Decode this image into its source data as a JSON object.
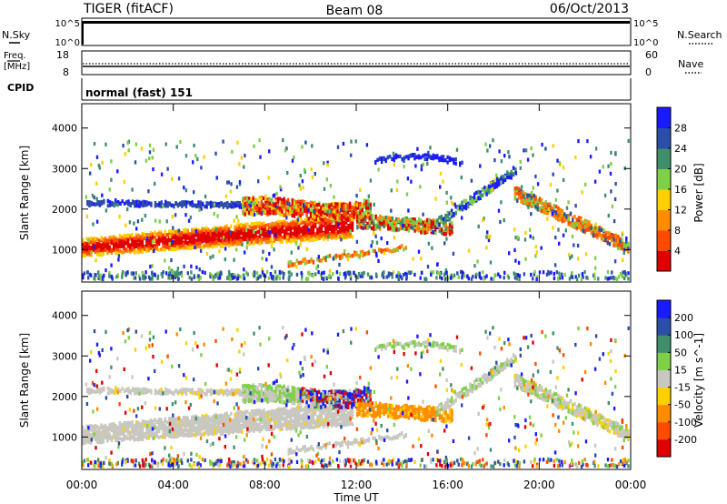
{
  "header": {
    "title": "TIGER (fitACF)",
    "beam": "Beam 08",
    "date": "06/Oct/2013"
  },
  "params": {
    "nsky_label": "N.Sky",
    "nsky_ticks": [
      "10^5",
      "10^0"
    ],
    "nsearch_label": "N.Search",
    "nsearch_ticks": [
      "10^5",
      "10^0"
    ],
    "freq_label_1": "Freq.",
    "freq_label_2": "[MHz]",
    "freq_ticks": [
      "18",
      "8"
    ],
    "nave_label": "Nave",
    "nave_ticks": [
      "60",
      "0"
    ],
    "cpid_label": "CPID",
    "cpid_value": "normal (fast) 151"
  },
  "chart_data": [
    {
      "type": "heatmap",
      "panel": "power",
      "ylabel": "Slant Range [km]",
      "yticks": [
        1000,
        2000,
        3000,
        4000
      ],
      "ylim": [
        200,
        4600
      ],
      "colorbar_label": "Power [dB]",
      "colorbar_ticks": [
        4,
        8,
        12,
        16,
        20,
        24,
        28
      ],
      "colorbar_colors": [
        "#1a1aff",
        "#2b4ea8",
        "#3e8f6a",
        "#7fd048",
        "#ffd000",
        "#ff8c00",
        "#ff4a00",
        "#e00000"
      ]
    },
    {
      "type": "heatmap",
      "panel": "velocity",
      "ylabel": "Slant Range [km]",
      "yticks": [
        1000,
        2000,
        3000,
        4000
      ],
      "ylim": [
        200,
        4600
      ],
      "colorbar_label": "Velocity [m s^-1]",
      "colorbar_ticks": [
        200,
        100,
        50,
        15,
        -15,
        -50,
        -100,
        -200
      ],
      "colorbar_colors": [
        "#1a1aff",
        "#2b4ea8",
        "#3e8f6a",
        "#7fd048",
        "#c8c8c0",
        "#ffd000",
        "#ff8c00",
        "#ff4a00",
        "#e00000"
      ]
    }
  ],
  "xaxis": {
    "label": "Time UT",
    "ticks": [
      "00:00",
      "04:00",
      "08:00",
      "12:00",
      "16:00",
      "20:00",
      "00:00"
    ],
    "hours": [
      0,
      4,
      8,
      12,
      16,
      20,
      24
    ]
  }
}
